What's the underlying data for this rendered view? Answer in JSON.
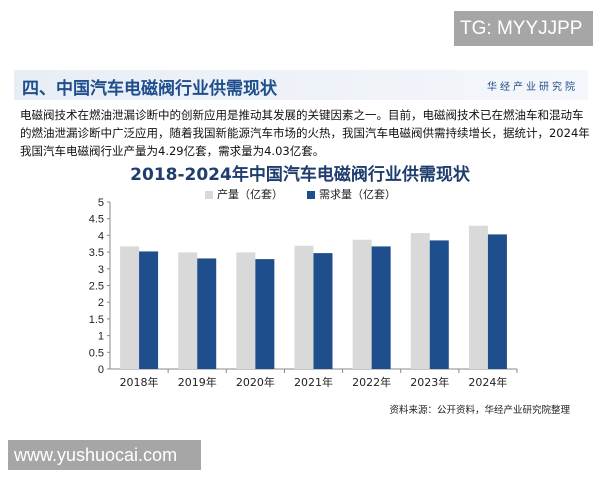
{
  "watermark_top": "TG: MYYJJPP",
  "watermark_bottom": "www.yushuocai.com",
  "section_title": "四、中国汽车电磁阀行业供需现状",
  "brand": "华经产业研究院",
  "paragraph": "电磁阀技术在燃油泄漏诊断中的创新应用是推动其发展的关键因素之一。目前，电磁阀技术已在燃油车和混动车的燃油泄漏诊断中广泛应用，随着我国新能源汽车市场的火热，我国汽车电磁阀供需持续增长，据统计，2024年我国汽车电磁阀行业产量为4.29亿套，需求量为4.03亿套。",
  "source": "资料来源：公开资料，华经产业研究院整理",
  "chart_data": {
    "type": "bar",
    "title": "2018-2024年中国汽车电磁阀行业供需现状",
    "categories": [
      "2018年",
      "2019年",
      "2020年",
      "2021年",
      "2022年",
      "2023年",
      "2024年"
    ],
    "series": [
      {
        "name": "产量（亿套）",
        "color": "#d9d9d9",
        "values": [
          3.67,
          3.49,
          3.49,
          3.69,
          3.87,
          4.07,
          4.29
        ]
      },
      {
        "name": "需求量（亿套）",
        "color": "#1f4e8c",
        "values": [
          3.52,
          3.31,
          3.29,
          3.47,
          3.67,
          3.85,
          4.03
        ]
      }
    ],
    "ylim": [
      0,
      5
    ],
    "yticks": [
      "0",
      "0.5",
      "1",
      "1.5",
      "2",
      "2.5",
      "3",
      "3.5",
      "4",
      "4.5",
      "5"
    ],
    "grid": false,
    "legend": "top"
  }
}
